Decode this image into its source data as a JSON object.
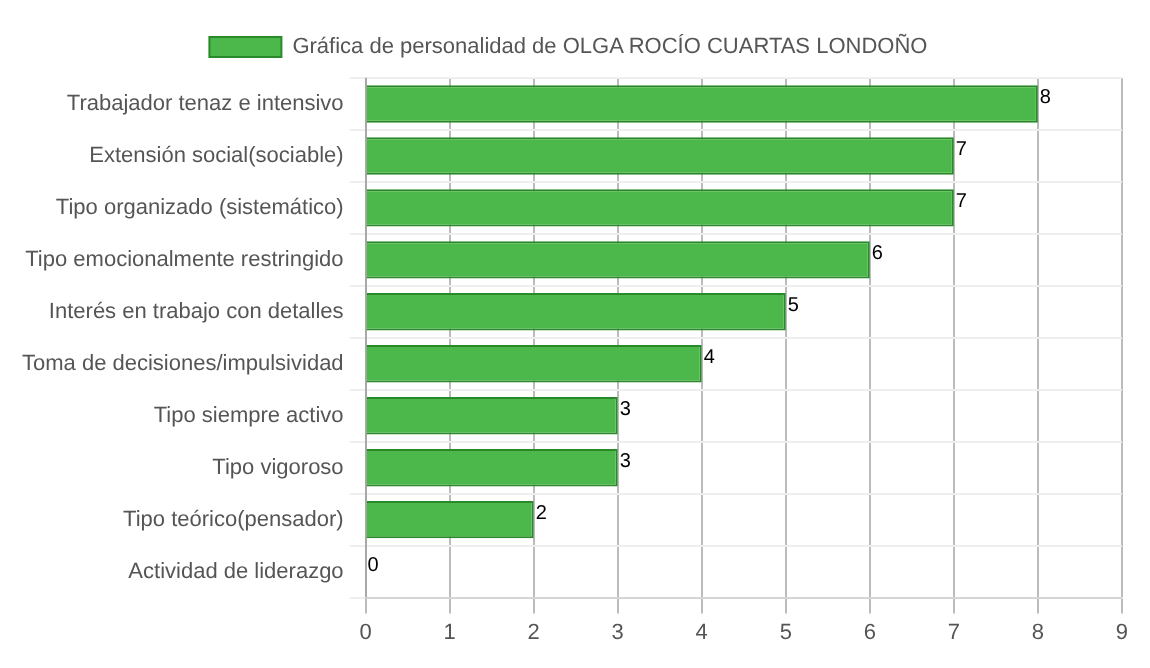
{
  "chart_data": {
    "type": "bar",
    "orientation": "horizontal",
    "categories": [
      "Trabajador tenaz e intensivo",
      "Extensión social(sociable)",
      "Tipo organizado (sistemático)",
      "Tipo emocionalmente restringido",
      "Interés en trabajo con detalles",
      "Toma de decisiones/impulsividad",
      "Tipo siempre activo",
      "Tipo vigoroso",
      "Tipo teórico(pensador)",
      "Actividad de liderazgo"
    ],
    "series": [
      {
        "name": "Gráfica de personalidad de OLGA ROCÍO CUARTAS LONDOÑO",
        "color": "#4cb84c",
        "values": [
          8,
          7,
          7,
          6,
          5,
          4,
          3,
          3,
          2,
          0
        ]
      }
    ],
    "xlim": [
      0,
      9
    ],
    "xticks": [
      0,
      1,
      2,
      3,
      4,
      5,
      6,
      7,
      8,
      9
    ],
    "grid": true,
    "legend": "top",
    "data_labels": true
  }
}
